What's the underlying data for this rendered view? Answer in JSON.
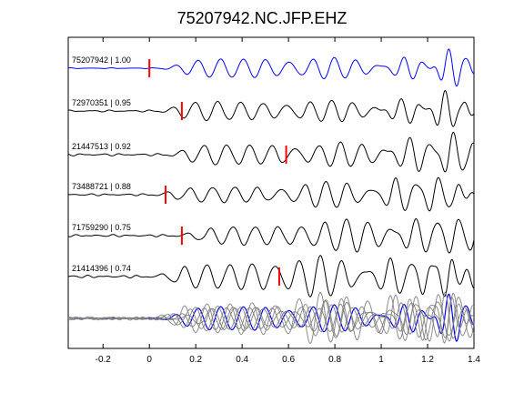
{
  "chart_data": {
    "type": "line",
    "title": "75207942.NC.JFP.EHZ",
    "xlabel": "",
    "ylabel": "",
    "xlim": [
      -0.35,
      1.4
    ],
    "xticks": [
      -0.2,
      0,
      0.2,
      0.4,
      0.6,
      0.8,
      1,
      1.2,
      1.4
    ],
    "xtick_labels": [
      "-0.2",
      "0",
      "0.2",
      "0.4",
      "0.6",
      "0.8",
      "1",
      "1.2",
      "1.4"
    ],
    "grid": false,
    "legend": "none",
    "colors": {
      "reference": "#0000ff",
      "trace": "#000000",
      "overlay": "#808080",
      "pick": "#ff0000",
      "axes": "#000000"
    },
    "series": [
      {
        "id": "75207942",
        "label": "75207942 | 1.00",
        "event_id": "75207942",
        "correlation": 1.0,
        "pick_time": 0.0,
        "color": "#0000ff",
        "reference": true
      },
      {
        "id": "72970351",
        "label": "72970351 | 0.95",
        "event_id": "72970351",
        "correlation": 0.95,
        "pick_time": 0.14,
        "color": "#000000",
        "reference": false
      },
      {
        "id": "21447513",
        "label": "21447513 | 0.92",
        "event_id": "21447513",
        "correlation": 0.92,
        "pick_time": 0.59,
        "color": "#000000",
        "reference": false
      },
      {
        "id": "73488721",
        "label": "73488721 | 0.88",
        "event_id": "73488721",
        "correlation": 0.88,
        "pick_time": 0.07,
        "color": "#000000",
        "reference": false
      },
      {
        "id": "71759290",
        "label": "71759290 | 0.75",
        "event_id": "71759290",
        "correlation": 0.75,
        "pick_time": 0.14,
        "color": "#000000",
        "reference": false
      },
      {
        "id": "21414396",
        "label": "21414396 | 0.74",
        "event_id": "21414396",
        "correlation": 0.74,
        "pick_time": 0.56,
        "color": "#000000",
        "reference": false
      }
    ],
    "stack": {
      "description_label": "",
      "overlay_count": 6
    }
  }
}
